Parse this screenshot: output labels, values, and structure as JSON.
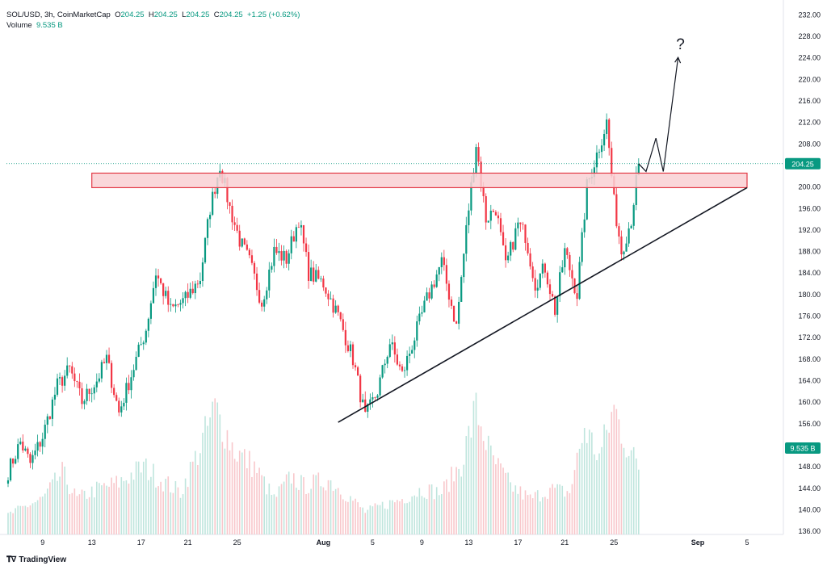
{
  "legend": {
    "symbol": "SOL/USD, 3h, CoinMarketCap",
    "o_label": "O",
    "o": "204.25",
    "h_label": "H",
    "h": "204.25",
    "l_label": "L",
    "l": "204.25",
    "c_label": "C",
    "c": "204.25",
    "change": "+1.25 (+0.62%)",
    "volume_label": "Volume",
    "volume": "9.535 B"
  },
  "watermark": "TradingView",
  "colors": {
    "up": "#089981",
    "down": "#f23645",
    "zone_fill": "#f9d0d3",
    "zone_stroke": "#e33a47",
    "axis_text": "#131722",
    "price_badge": "#089981"
  },
  "chart_data": {
    "type": "candlestick",
    "title": "SOL/USD, 3h, CoinMarketCap",
    "y_ticks": [
      "232.00",
      "228.00",
      "224.00",
      "220.00",
      "216.00",
      "212.00",
      "208.00",
      "204.00",
      "200.00",
      "196.00",
      "192.00",
      "188.00",
      "184.00",
      "180.00",
      "176.00",
      "172.00",
      "168.00",
      "164.00",
      "160.00",
      "156.00",
      "152.00",
      "148.00",
      "144.00",
      "140.00",
      "136.00"
    ],
    "ylim": [
      135.5,
      234
    ],
    "x_ticks": [
      "9",
      "13",
      "17",
      "21",
      "25",
      "Aug",
      "5",
      "9",
      "13",
      "17",
      "21",
      "25",
      "Sep",
      "5"
    ],
    "last_price": "204.25",
    "last_volume": "9.535 B",
    "close_path": [
      {
        "i": 0,
        "p": 147.0
      },
      {
        "i": 5,
        "p": 152.5
      },
      {
        "i": 9,
        "p": 148.5
      },
      {
        "i": 14,
        "p": 153.5
      },
      {
        "i": 20,
        "p": 163.0
      },
      {
        "i": 25,
        "p": 166.0
      },
      {
        "i": 30,
        "p": 160.0
      },
      {
        "i": 36,
        "p": 164.0
      },
      {
        "i": 40,
        "p": 168.0
      },
      {
        "i": 45,
        "p": 158.0
      },
      {
        "i": 50,
        "p": 165.0
      },
      {
        "i": 56,
        "p": 173.5
      },
      {
        "i": 60,
        "p": 184.0
      },
      {
        "i": 66,
        "p": 177.0
      },
      {
        "i": 72,
        "p": 179.0
      },
      {
        "i": 78,
        "p": 183.0
      },
      {
        "i": 82,
        "p": 196.0
      },
      {
        "i": 86,
        "p": 204.0
      },
      {
        "i": 90,
        "p": 196.0
      },
      {
        "i": 94,
        "p": 190.0
      },
      {
        "i": 98,
        "p": 186.0
      },
      {
        "i": 103,
        "p": 178.5
      },
      {
        "i": 108,
        "p": 188.0
      },
      {
        "i": 113,
        "p": 186.5
      },
      {
        "i": 118,
        "p": 194.0
      },
      {
        "i": 122,
        "p": 184.0
      },
      {
        "i": 128,
        "p": 182.0
      },
      {
        "i": 134,
        "p": 176.0
      },
      {
        "i": 140,
        "p": 168.0
      },
      {
        "i": 145,
        "p": 157.0
      },
      {
        "i": 150,
        "p": 162.0
      },
      {
        "i": 155,
        "p": 171.0
      },
      {
        "i": 160,
        "p": 165.0
      },
      {
        "i": 165,
        "p": 172.0
      },
      {
        "i": 170,
        "p": 179.0
      },
      {
        "i": 176,
        "p": 186.0
      },
      {
        "i": 182,
        "p": 174.0
      },
      {
        "i": 186,
        "p": 192.0
      },
      {
        "i": 190,
        "p": 208.0
      },
      {
        "i": 194,
        "p": 194.0
      },
      {
        "i": 198,
        "p": 196.0
      },
      {
        "i": 202,
        "p": 185.0
      },
      {
        "i": 207,
        "p": 193.0
      },
      {
        "i": 210,
        "p": 191.0
      },
      {
        "i": 214,
        "p": 182.0
      },
      {
        "i": 218,
        "p": 185.0
      },
      {
        "i": 222,
        "p": 177.0
      },
      {
        "i": 226,
        "p": 188.0
      },
      {
        "i": 231,
        "p": 180.0
      },
      {
        "i": 235,
        "p": 200.0
      },
      {
        "i": 239,
        "p": 206.0
      },
      {
        "i": 243,
        "p": 212.0
      },
      {
        "i": 246,
        "p": 197.0
      },
      {
        "i": 249,
        "p": 188.0
      },
      {
        "i": 253,
        "p": 194.0
      },
      {
        "i": 256,
        "p": 204.25
      }
    ],
    "volume_path": [
      {
        "i": 0,
        "v": 0.3
      },
      {
        "i": 8,
        "v": 0.45
      },
      {
        "i": 14,
        "v": 0.55
      },
      {
        "i": 22,
        "v": 0.95
      },
      {
        "i": 28,
        "v": 0.55
      },
      {
        "i": 36,
        "v": 0.7
      },
      {
        "i": 45,
        "v": 0.8
      },
      {
        "i": 55,
        "v": 1.05
      },
      {
        "i": 62,
        "v": 0.85
      },
      {
        "i": 70,
        "v": 0.65
      },
      {
        "i": 78,
        "v": 1.35
      },
      {
        "i": 84,
        "v": 1.95
      },
      {
        "i": 92,
        "v": 1.3
      },
      {
        "i": 100,
        "v": 1.05
      },
      {
        "i": 108,
        "v": 0.55
      },
      {
        "i": 115,
        "v": 0.9
      },
      {
        "i": 120,
        "v": 0.75
      },
      {
        "i": 130,
        "v": 0.85
      },
      {
        "i": 138,
        "v": 0.6
      },
      {
        "i": 145,
        "v": 0.35
      },
      {
        "i": 152,
        "v": 0.45
      },
      {
        "i": 160,
        "v": 0.55
      },
      {
        "i": 168,
        "v": 0.7
      },
      {
        "i": 176,
        "v": 0.65
      },
      {
        "i": 184,
        "v": 1.1
      },
      {
        "i": 190,
        "v": 1.95
      },
      {
        "i": 196,
        "v": 1.2
      },
      {
        "i": 204,
        "v": 0.75
      },
      {
        "i": 212,
        "v": 0.55
      },
      {
        "i": 220,
        "v": 0.7
      },
      {
        "i": 228,
        "v": 0.65
      },
      {
        "i": 234,
        "v": 1.65
      },
      {
        "i": 240,
        "v": 1.2
      },
      {
        "i": 246,
        "v": 1.95
      },
      {
        "i": 252,
        "v": 1.3
      },
      {
        "i": 256,
        "v": 1.05
      }
    ],
    "annotations": {
      "resistance_zone": {
        "from": 199.8,
        "to": 202.5
      },
      "trendline": {
        "from_price": 156.2,
        "to_price": 199.8
      },
      "projection": [
        204.25,
        202.8,
        209.0,
        202.8,
        224.0
      ],
      "projection_label": "?"
    }
  }
}
